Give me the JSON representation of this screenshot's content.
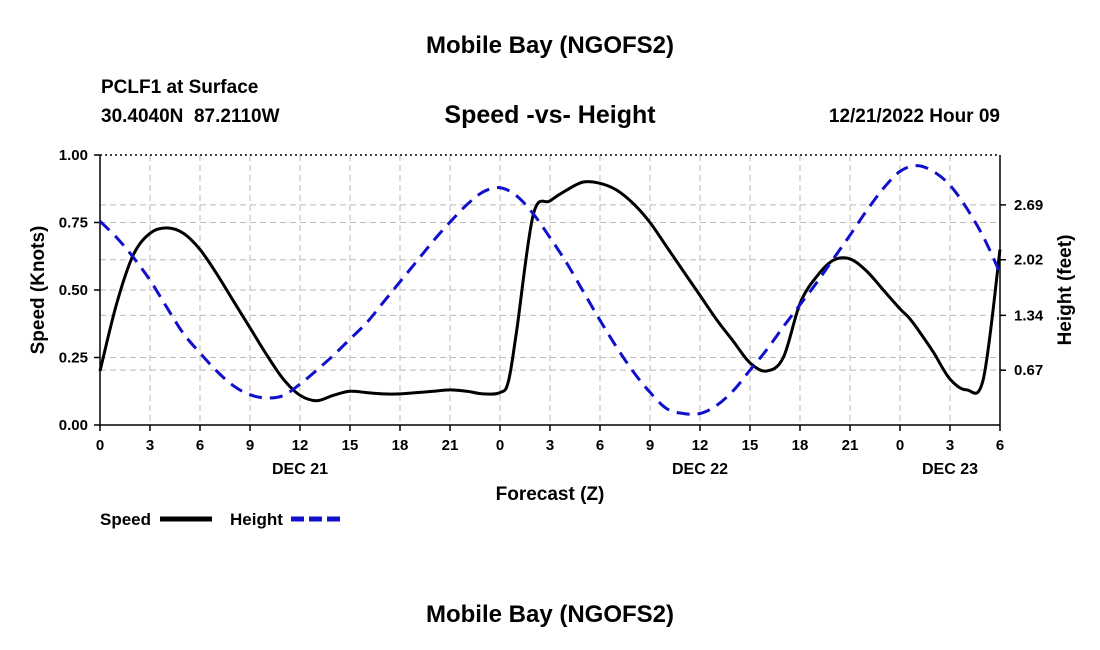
{
  "page": {
    "main_title": "Mobile Bay (NGOFS2)",
    "bottom_title": "Mobile Bay (NGOFS2)",
    "station": "PCLF1 at Surface",
    "coords": "30.4040N  87.2110W",
    "subtitle": "Speed -vs- Height",
    "datetime": "12/21/2022 Hour 09"
  },
  "chart_data": {
    "type": "line",
    "xlabel": "Forecast (Z)",
    "ylabel": "Speed (Knots)",
    "y2label": "Height (feet)",
    "x_ticks": [
      0,
      3,
      6,
      9,
      12,
      15,
      18,
      21,
      24,
      27,
      30,
      33,
      36,
      39,
      42,
      45,
      48,
      51,
      54
    ],
    "x_tick_labels": [
      "0",
      "3",
      "6",
      "9",
      "12",
      "15",
      "18",
      "21",
      "0",
      "3",
      "6",
      "9",
      "12",
      "15",
      "18",
      "21",
      "0",
      "3",
      "6"
    ],
    "date_labels": [
      {
        "x": 12,
        "label": "DEC 21"
      },
      {
        "x": 36,
        "label": "DEC 22"
      },
      {
        "x": 51,
        "label": "DEC 23"
      }
    ],
    "xlim": [
      0,
      54
    ],
    "ylim": [
      0,
      1.0
    ],
    "y_ticks": [
      0,
      0.25,
      0.5,
      0.75,
      1.0
    ],
    "y_tick_labels": [
      "0.00",
      "0.25",
      "0.50",
      "0.75",
      "1.00"
    ],
    "y2lim": [
      0,
      3.3
    ],
    "y2_ticks": [
      0.67,
      1.34,
      2.02,
      2.69
    ],
    "y2_tick_labels": [
      "0.67",
      "1.34",
      "2.02",
      "2.69"
    ],
    "grid": true,
    "legend": [
      {
        "label": "Speed",
        "color": "#000000",
        "style": "solid"
      },
      {
        "label": "Height",
        "color": "#1010cc",
        "style": "dashed"
      }
    ],
    "series": [
      {
        "name": "Speed",
        "axis": "left",
        "color": "#000000",
        "x": [
          0,
          1,
          2,
          3,
          4,
          5,
          6,
          7,
          8,
          9,
          10,
          11,
          12,
          13,
          14,
          15,
          16,
          17,
          18,
          19,
          20,
          21,
          22,
          23,
          24,
          24.5,
          25,
          26,
          27,
          28,
          29,
          30,
          31,
          32,
          33,
          34,
          35,
          36,
          37,
          38,
          39,
          40,
          41,
          42,
          43,
          44,
          45,
          46,
          47,
          48,
          48.5,
          49,
          50,
          51,
          52,
          53,
          54
        ],
        "y": [
          0.2,
          0.45,
          0.63,
          0.71,
          0.73,
          0.71,
          0.65,
          0.56,
          0.46,
          0.36,
          0.26,
          0.17,
          0.11,
          0.09,
          0.11,
          0.125,
          0.12,
          0.115,
          0.115,
          0.12,
          0.125,
          0.13,
          0.125,
          0.115,
          0.12,
          0.16,
          0.35,
          0.78,
          0.83,
          0.87,
          0.9,
          0.895,
          0.87,
          0.82,
          0.75,
          0.66,
          0.57,
          0.48,
          0.39,
          0.31,
          0.23,
          0.2,
          0.25,
          0.45,
          0.55,
          0.61,
          0.615,
          0.57,
          0.5,
          0.43,
          0.4,
          0.36,
          0.27,
          0.17,
          0.13,
          0.17,
          0.65
        ]
      },
      {
        "name": "Height",
        "axis": "right",
        "color": "#1010cc",
        "x": [
          0,
          1,
          2,
          3,
          4,
          5,
          6,
          7,
          8,
          9,
          10,
          11,
          12,
          13,
          14,
          15,
          16,
          17,
          18,
          19,
          20,
          21,
          22,
          23,
          24,
          25,
          26,
          27,
          28,
          29,
          30,
          31,
          32,
          33,
          34,
          35,
          36,
          37,
          38,
          39,
          40,
          41,
          42,
          43,
          44,
          45,
          46,
          47,
          48,
          49,
          50,
          51,
          52,
          53,
          54
        ],
        "y": [
          2.49,
          2.29,
          2.05,
          1.77,
          1.44,
          1.12,
          0.88,
          0.66,
          0.48,
          0.37,
          0.33,
          0.36,
          0.5,
          0.67,
          0.85,
          1.05,
          1.25,
          1.5,
          1.75,
          2.0,
          2.25,
          2.48,
          2.69,
          2.85,
          2.9,
          2.8,
          2.58,
          2.29,
          1.98,
          1.63,
          1.28,
          0.95,
          0.65,
          0.4,
          0.2,
          0.14,
          0.14,
          0.24,
          0.42,
          0.67,
          0.92,
          1.2,
          1.47,
          1.74,
          2.03,
          2.32,
          2.62,
          2.89,
          3.1,
          3.17,
          3.1,
          2.93,
          2.65,
          2.3,
          1.86
        ]
      }
    ]
  }
}
